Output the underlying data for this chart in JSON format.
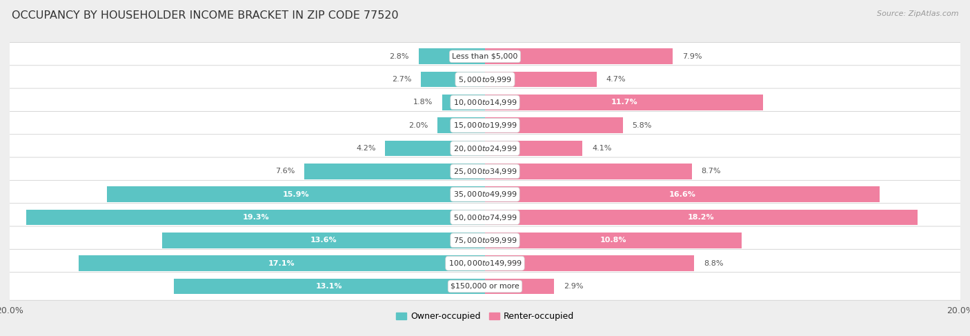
{
  "title": "OCCUPANCY BY HOUSEHOLDER INCOME BRACKET IN ZIP CODE 77520",
  "source": "Source: ZipAtlas.com",
  "categories": [
    "Less than $5,000",
    "$5,000 to $9,999",
    "$10,000 to $14,999",
    "$15,000 to $19,999",
    "$20,000 to $24,999",
    "$25,000 to $34,999",
    "$35,000 to $49,999",
    "$50,000 to $74,999",
    "$75,000 to $99,999",
    "$100,000 to $149,999",
    "$150,000 or more"
  ],
  "owner_values": [
    2.8,
    2.7,
    1.8,
    2.0,
    4.2,
    7.6,
    15.9,
    19.3,
    13.6,
    17.1,
    13.1
  ],
  "renter_values": [
    7.9,
    4.7,
    11.7,
    5.8,
    4.1,
    8.7,
    16.6,
    18.2,
    10.8,
    8.8,
    2.9
  ],
  "owner_color": "#5bc4c4",
  "renter_color": "#f080a0",
  "background_color": "#eeeeee",
  "bar_background": "#ffffff",
  "axis_max": 20.0,
  "legend_owner": "Owner-occupied",
  "legend_renter": "Renter-occupied",
  "title_fontsize": 11.5,
  "source_fontsize": 8,
  "label_fontsize": 8,
  "category_fontsize": 8,
  "label_inside_threshold": 10.0
}
